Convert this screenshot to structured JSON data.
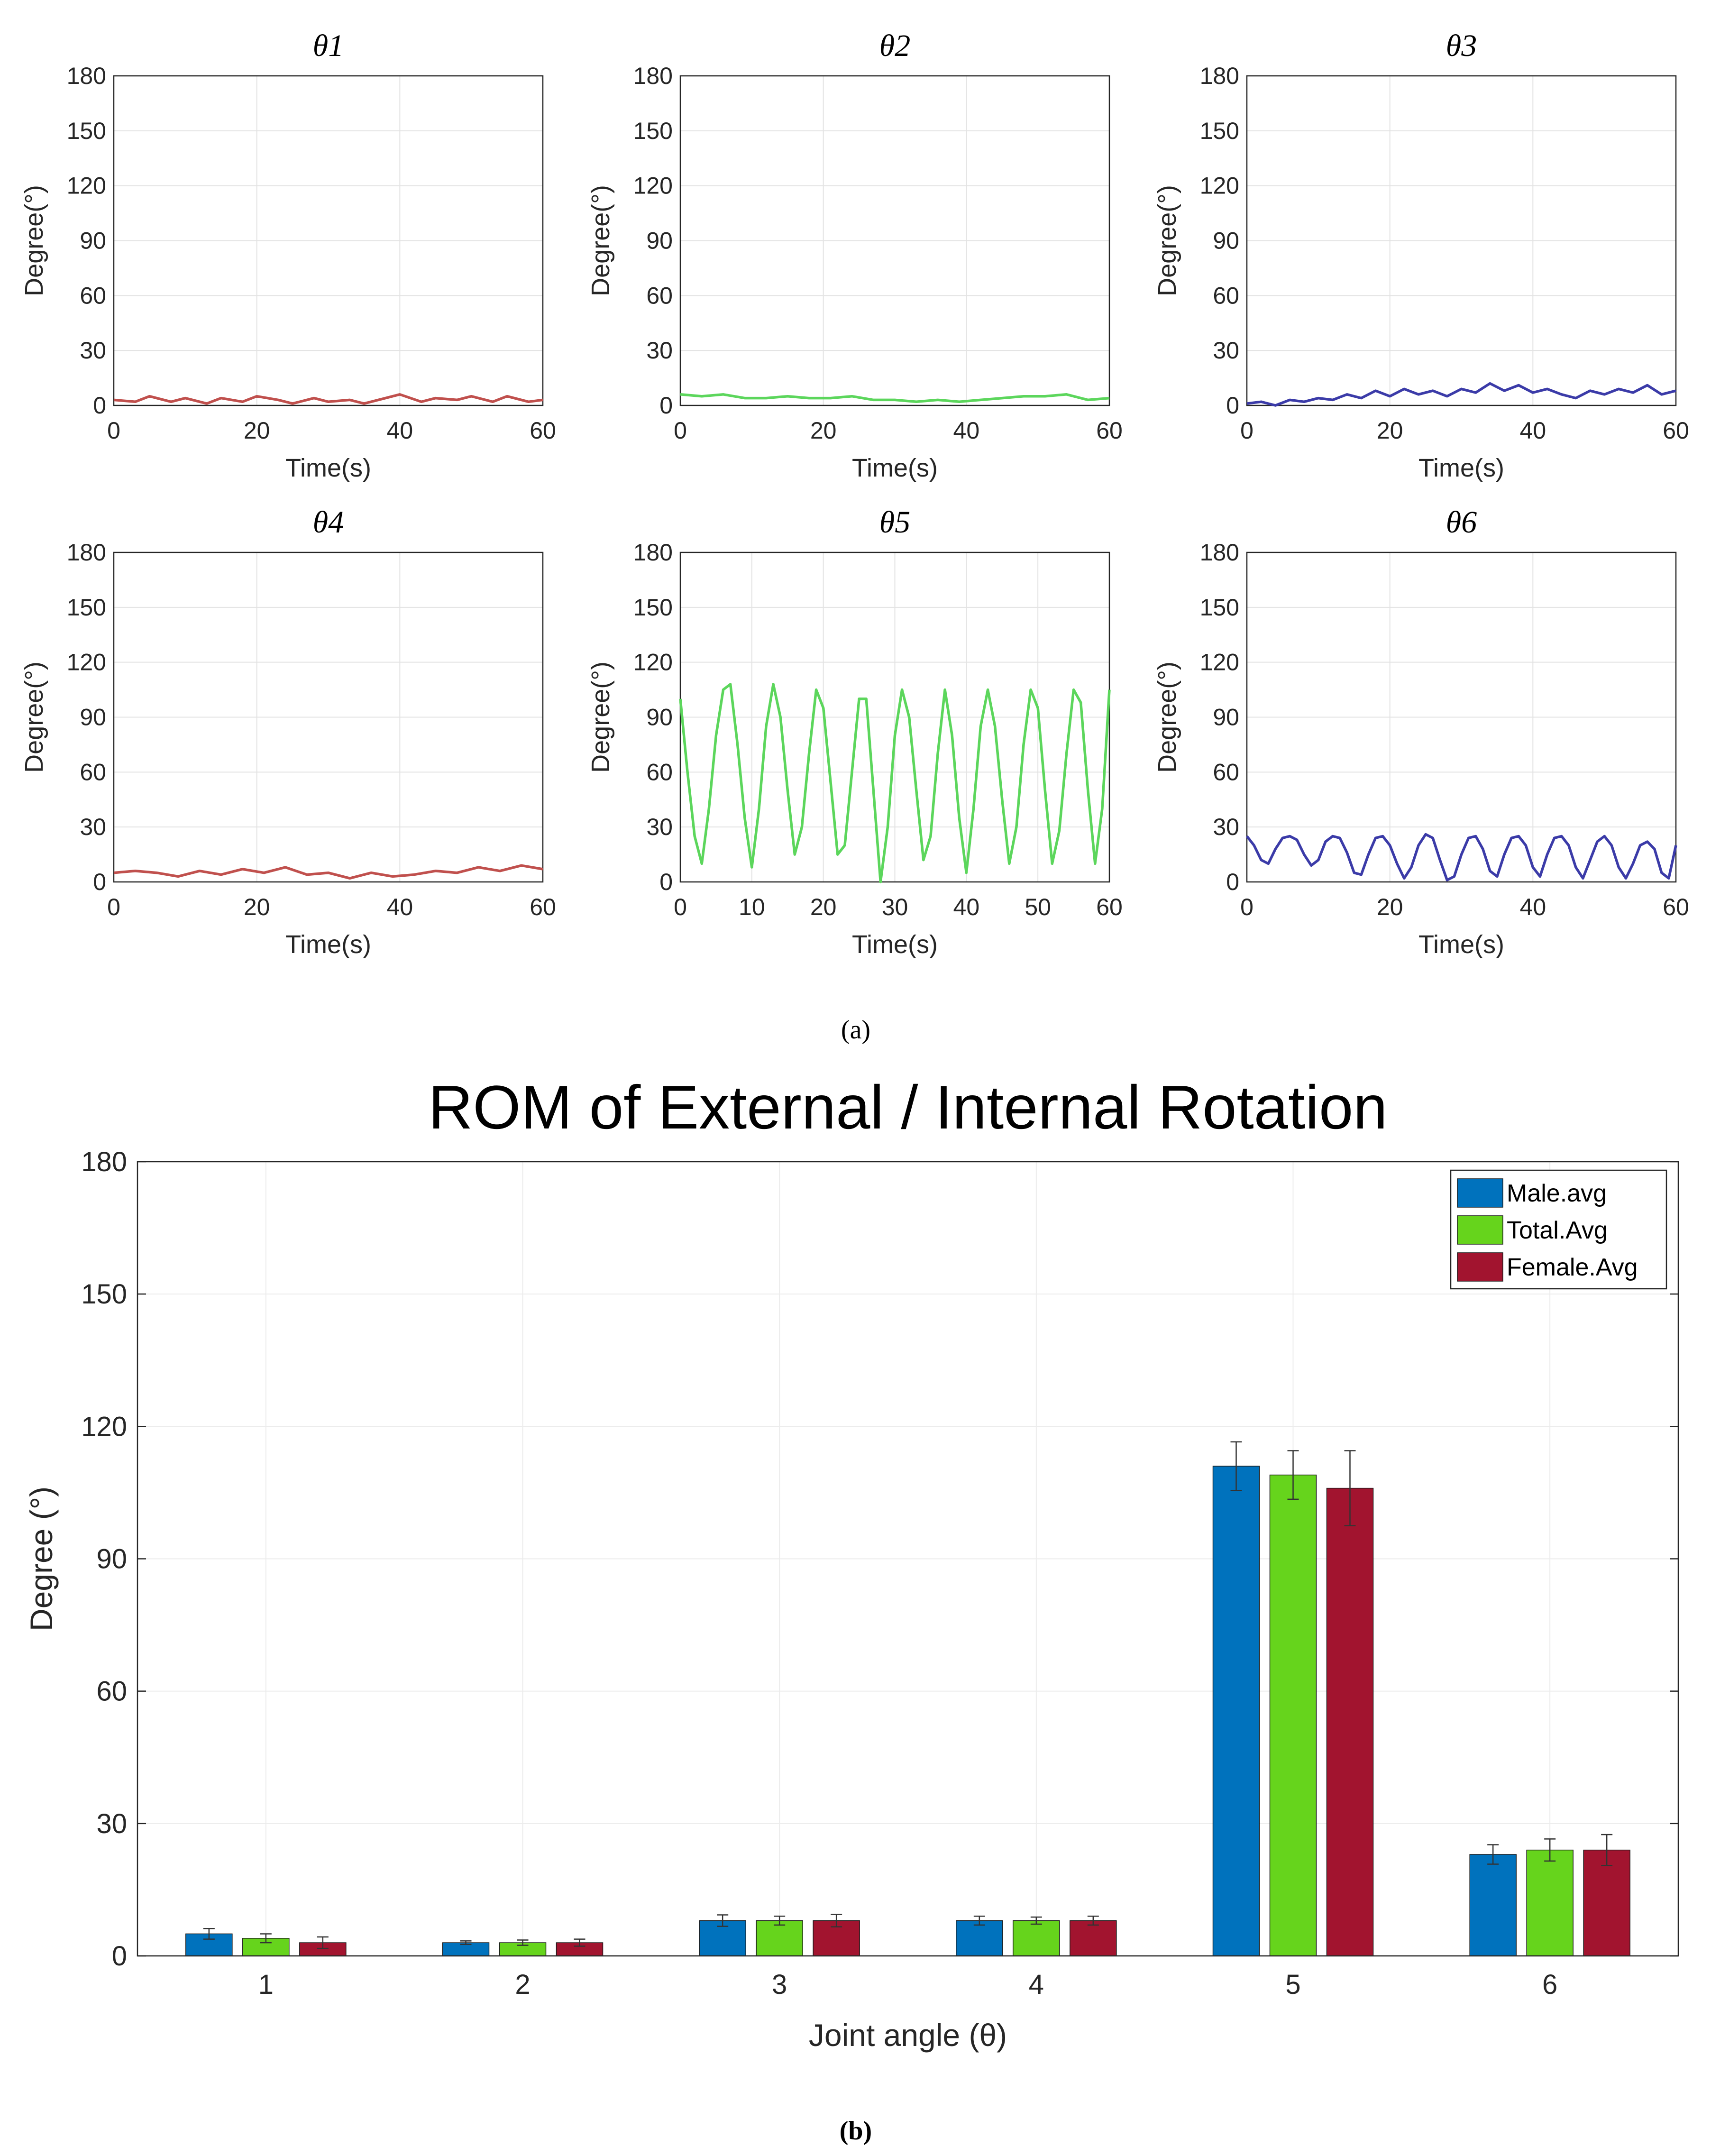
{
  "caption_a": "(a)",
  "caption_b": "(b)",
  "chart_data": [
    {
      "type": "line",
      "title": "θ1",
      "xlabel": "Time(s)",
      "ylabel": "Degree(°)",
      "xlim": [
        0,
        60
      ],
      "ylim": [
        0,
        180
      ],
      "xticks": [
        0,
        20,
        40,
        60
      ],
      "yticks": [
        0,
        30,
        60,
        90,
        120,
        150,
        180
      ],
      "color": "#c0504d",
      "x": [
        0,
        3,
        5,
        8,
        10,
        13,
        15,
        18,
        20,
        23,
        25,
        28,
        30,
        33,
        35,
        38,
        40,
        43,
        45,
        48,
        50,
        53,
        55,
        58,
        60
      ],
      "y": [
        3,
        2,
        5,
        2,
        4,
        1,
        4,
        2,
        5,
        3,
        1,
        4,
        2,
        3,
        1,
        4,
        6,
        2,
        4,
        3,
        5,
        2,
        5,
        2,
        3
      ]
    },
    {
      "type": "line",
      "title": "θ2",
      "xlabel": "Time(s)",
      "ylabel": "Degree(°)",
      "xlim": [
        0,
        60
      ],
      "ylim": [
        0,
        180
      ],
      "xticks": [
        0,
        20,
        40,
        60
      ],
      "yticks": [
        0,
        30,
        60,
        90,
        120,
        150,
        180
      ],
      "color": "#5cd65c",
      "x": [
        0,
        3,
        6,
        9,
        12,
        15,
        18,
        21,
        24,
        27,
        30,
        33,
        36,
        39,
        42,
        45,
        48,
        51,
        54,
        57,
        60
      ],
      "y": [
        6,
        5,
        6,
        4,
        4,
        5,
        4,
        4,
        5,
        3,
        3,
        2,
        3,
        2,
        3,
        4,
        5,
        5,
        6,
        3,
        4
      ]
    },
    {
      "type": "line",
      "title": "θ3",
      "xlabel": "Time(s)",
      "ylabel": "Degree(°)",
      "xlim": [
        0,
        60
      ],
      "ylim": [
        0,
        180
      ],
      "xticks": [
        0,
        20,
        40,
        60
      ],
      "yticks": [
        0,
        30,
        60,
        90,
        120,
        150,
        180
      ],
      "color": "#3b3ba8",
      "x": [
        0,
        2,
        4,
        6,
        8,
        10,
        12,
        14,
        16,
        18,
        20,
        22,
        24,
        26,
        28,
        30,
        32,
        34,
        36,
        38,
        40,
        42,
        44,
        46,
        48,
        50,
        52,
        54,
        56,
        58,
        60
      ],
      "y": [
        1,
        2,
        0,
        3,
        2,
        4,
        3,
        6,
        4,
        8,
        5,
        9,
        6,
        8,
        5,
        9,
        7,
        12,
        8,
        11,
        7,
        9,
        6,
        4,
        8,
        6,
        9,
        7,
        11,
        6,
        8
      ]
    },
    {
      "type": "line",
      "title": "θ4",
      "xlabel": "Time(s)",
      "ylabel": "Degree(°)",
      "xlim": [
        0,
        60
      ],
      "ylim": [
        0,
        180
      ],
      "xticks": [
        0,
        20,
        40,
        60
      ],
      "yticks": [
        0,
        30,
        60,
        90,
        120,
        150,
        180
      ],
      "color": "#c0504d",
      "x": [
        0,
        3,
        6,
        9,
        12,
        15,
        18,
        21,
        24,
        27,
        30,
        33,
        36,
        39,
        42,
        45,
        48,
        51,
        54,
        57,
        60
      ],
      "y": [
        5,
        6,
        5,
        3,
        6,
        4,
        7,
        5,
        8,
        4,
        5,
        2,
        5,
        3,
        4,
        6,
        5,
        8,
        6,
        9,
        7
      ]
    },
    {
      "type": "line",
      "title": "θ5",
      "xlabel": "Time(s)",
      "ylabel": "Degree(°)",
      "xlim": [
        0,
        60
      ],
      "ylim": [
        0,
        180
      ],
      "xticks": [
        0,
        10,
        20,
        30,
        40,
        50,
        60
      ],
      "yticks": [
        0,
        30,
        60,
        90,
        120,
        150,
        180
      ],
      "color": "#5cd65c",
      "x": [
        0,
        1,
        2,
        3,
        4,
        5,
        6,
        7,
        8,
        9,
        10,
        11,
        12,
        13,
        14,
        15,
        16,
        17,
        18,
        19,
        20,
        21,
        22,
        23,
        24,
        25,
        26,
        27,
        28,
        29,
        30,
        31,
        32,
        33,
        34,
        35,
        36,
        37,
        38,
        39,
        40,
        41,
        42,
        43,
        44,
        45,
        46,
        47,
        48,
        49,
        50,
        51,
        52,
        53,
        54,
        55,
        56,
        57,
        58,
        59,
        60
      ],
      "y": [
        100,
        60,
        25,
        10,
        40,
        80,
        105,
        108,
        75,
        35,
        8,
        40,
        85,
        108,
        90,
        50,
        15,
        30,
        70,
        105,
        95,
        55,
        15,
        20,
        60,
        100,
        100,
        50,
        0,
        30,
        80,
        105,
        90,
        50,
        12,
        25,
        70,
        105,
        80,
        35,
        5,
        40,
        85,
        105,
        85,
        45,
        10,
        30,
        75,
        105,
        95,
        50,
        10,
        28,
        70,
        105,
        98,
        50,
        10,
        40,
        105
      ]
    },
    {
      "type": "line",
      "title": "θ6",
      "xlabel": "Time(s)",
      "ylabel": "Degree(°)",
      "xlim": [
        0,
        60
      ],
      "ylim": [
        0,
        180
      ],
      "xticks": [
        0,
        20,
        40,
        60
      ],
      "yticks": [
        0,
        30,
        60,
        90,
        120,
        150,
        180
      ],
      "color": "#3b3ba8",
      "x": [
        0,
        1,
        2,
        3,
        4,
        5,
        6,
        7,
        8,
        9,
        10,
        11,
        12,
        13,
        14,
        15,
        16,
        17,
        18,
        19,
        20,
        21,
        22,
        23,
        24,
        25,
        26,
        27,
        28,
        29,
        30,
        31,
        32,
        33,
        34,
        35,
        36,
        37,
        38,
        39,
        40,
        41,
        42,
        43,
        44,
        45,
        46,
        47,
        48,
        49,
        50,
        51,
        52,
        53,
        54,
        55,
        56,
        57,
        58,
        59,
        60
      ],
      "y": [
        25,
        20,
        12,
        10,
        18,
        24,
        25,
        23,
        15,
        9,
        12,
        22,
        25,
        24,
        16,
        5,
        4,
        15,
        24,
        25,
        20,
        10,
        2,
        8,
        20,
        26,
        24,
        12,
        1,
        3,
        15,
        24,
        25,
        18,
        6,
        3,
        15,
        24,
        25,
        20,
        8,
        3,
        15,
        24,
        25,
        20,
        8,
        2,
        12,
        22,
        25,
        20,
        8,
        2,
        10,
        20,
        22,
        18,
        5,
        2,
        20
      ]
    },
    {
      "type": "bar",
      "title": "ROM of External / Internal Rotation",
      "xlabel": "Joint angle (θ)",
      "ylabel": "Degree (°)",
      "ylim": [
        0,
        180
      ],
      "yticks": [
        0,
        30,
        60,
        90,
        120,
        150,
        180
      ],
      "categories": [
        "1",
        "2",
        "3",
        "4",
        "5",
        "6"
      ],
      "series": [
        {
          "name": "Male.avg",
          "color": "#0072bd",
          "values": [
            5,
            3,
            8,
            8,
            111,
            23
          ],
          "errors": [
            1.2,
            0.4,
            1.3,
            1,
            5.5,
            2.2
          ]
        },
        {
          "name": "Total.Avg",
          "color": "#66d41c",
          "values": [
            4,
            3,
            8,
            8,
            109,
            24
          ],
          "errors": [
            1,
            0.6,
            1,
            0.8,
            5.5,
            2.5
          ]
        },
        {
          "name": "Female.Avg",
          "color": "#a2142f",
          "values": [
            3,
            3,
            8,
            8,
            106,
            24
          ],
          "errors": [
            1.3,
            0.8,
            1.4,
            1,
            8.5,
            3.5
          ]
        }
      ],
      "legend_position": "top-right"
    }
  ]
}
